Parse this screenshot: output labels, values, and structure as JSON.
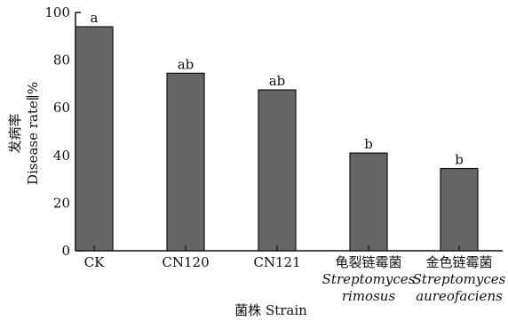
{
  "chart_data": {
    "type": "bar",
    "xlabel": "菌株 Strain",
    "ylabel_cn": "发病率",
    "ylabel_en": "Disease rate∥%",
    "ylim": [
      0,
      100
    ],
    "yticks": [
      "0",
      "20",
      "40",
      "60",
      "80",
      "100"
    ],
    "categories": [
      {
        "lines": [
          "CK"
        ],
        "italic": [
          false
        ]
      },
      {
        "lines": [
          "CN120"
        ],
        "italic": [
          false
        ]
      },
      {
        "lines": [
          "CN121"
        ],
        "italic": [
          false
        ]
      },
      {
        "lines": [
          "龟裂链霉菌",
          "Streptomyces",
          "rimosus"
        ],
        "italic": [
          false,
          true,
          true
        ]
      },
      {
        "lines": [
          "金色链霉菌",
          "Streptomyces",
          "aureofaciens"
        ],
        "italic": [
          false,
          true,
          true
        ]
      }
    ],
    "values": [
      94,
      74.5,
      67.5,
      41,
      34.5
    ],
    "significance": [
      "a",
      "ab",
      "ab",
      "b",
      "b"
    ],
    "bar_color": "#666666"
  }
}
